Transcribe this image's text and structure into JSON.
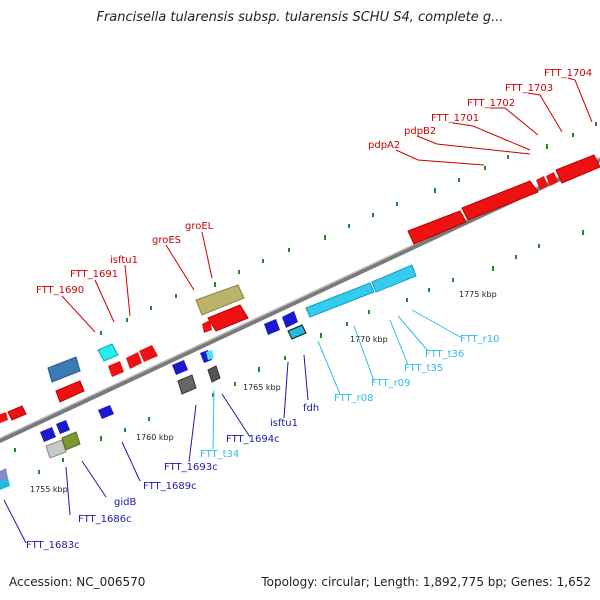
{
  "title": "Francisella tularensis subsp. tularensis SCHU S4, complete g...",
  "footer": {
    "accession": "Accession: NC_006570",
    "summary": "Topology: circular; Length: 1,892,775 bp; Genes: 1,652"
  },
  "colors": {
    "forward_gene": "#ee1111",
    "reverse_gene": "#1a1acc",
    "rna": "#33ccee",
    "forward_label": "#cc0000",
    "reverse_label": "#1a1aaa",
    "rna_label": "#33bbee",
    "backbone": "#888888",
    "ticks": "#228822"
  },
  "scale_labels": [
    "1755 kbp",
    "1760 kbp",
    "1765 kbp",
    "1770 kbp",
    "1775 kbp"
  ],
  "labels_top": [
    "FTT_1690",
    "FTT_1691",
    "isftu1",
    "groES",
    "groEL",
    "pdpA2",
    "pdpB2",
    "FTT_1701",
    "FTT_1702",
    "FTT_1703",
    "FTT_1704"
  ],
  "labels_bottom_reverse": [
    "FTT_1683c",
    "FTT_1686c",
    "gidB",
    "FTT_1689c",
    "FTT_1693c",
    "FTT_1694c",
    "isftu1",
    "fdh"
  ],
  "labels_bottom_rna": [
    "FTT_t34",
    "FTT_r08",
    "FTT_r09",
    "FTT_t35",
    "FTT_t36",
    "FTT_r10"
  ]
}
